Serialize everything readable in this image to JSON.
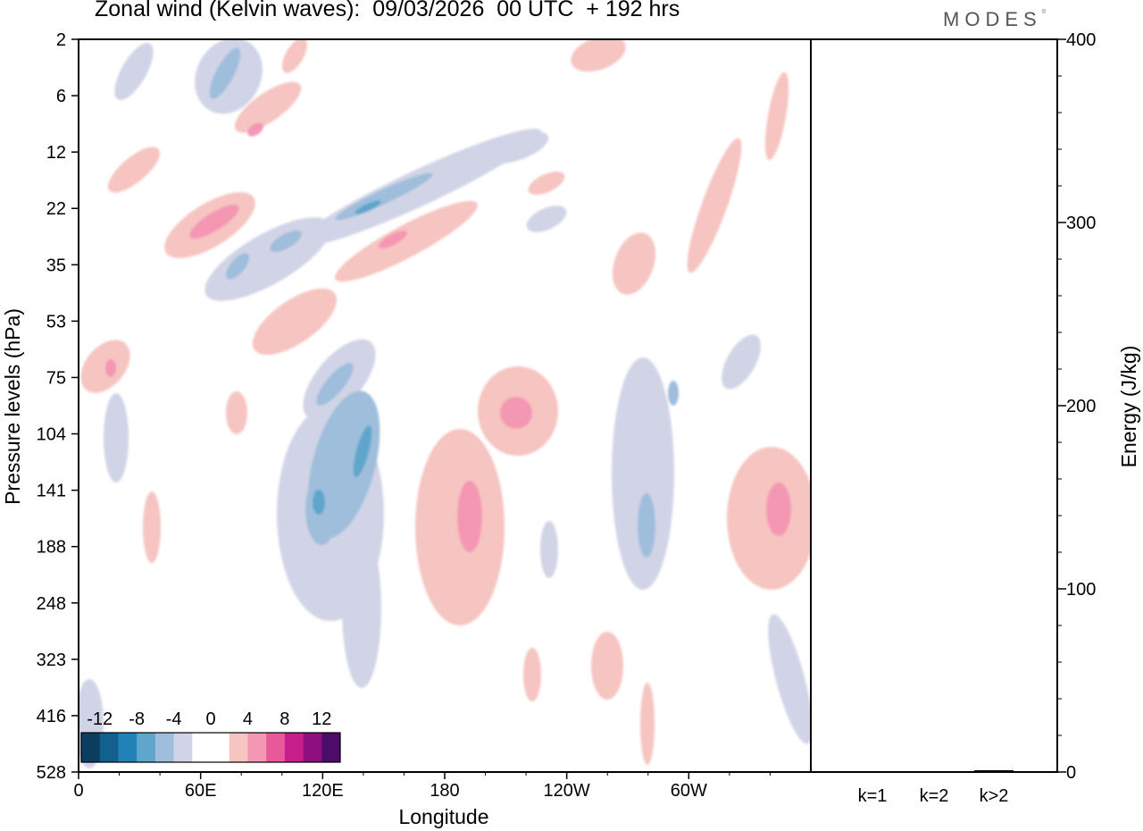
{
  "title": "Zonal wind (Kelvin waves):  09/03/2026  00 UTC  + 192 hrs",
  "logo": "MODES",
  "logo_mark": "©",
  "chart_data": [
    {
      "type": "heatmap",
      "title": "Zonal wind (Kelvin waves):  09/03/2026  00 UTC  + 192 hrs",
      "xlabel": "Longitude",
      "ylabel": "Pressure levels (hPa)",
      "x_ticks": [
        "0",
        "60E",
        "120E",
        "180",
        "120W",
        "60W"
      ],
      "x_tick_values": [
        0,
        60,
        120,
        180,
        240,
        300
      ],
      "xlim": [
        0,
        360
      ],
      "y_ticks": [
        "2",
        "6",
        "12",
        "22",
        "35",
        "53",
        "75",
        "104",
        "141",
        "188",
        "248",
        "323",
        "416",
        "528"
      ],
      "y_scale": "log",
      "colorbar": {
        "labels": [
          "-12",
          "-8",
          "-4",
          "0",
          "4",
          "8",
          "12"
        ],
        "colors": [
          "#0b3d5e",
          "#12608e",
          "#2383b8",
          "#5ea6cc",
          "#9fbedb",
          "#d1d4e6",
          "#ffffff",
          "#ffffff",
          "#f6c5c1",
          "#f497b3",
          "#e8599a",
          "#c61e8b",
          "#8e0f7d",
          "#4d0b6b"
        ],
        "placement": "bottom-left"
      },
      "legend": "bottom-left"
    },
    {
      "type": "bar",
      "categories": [
        "k=1",
        "k=2",
        "k>2"
      ],
      "values": [
        0,
        0,
        1
      ],
      "ylabel": "Energy (J/kg)",
      "y_ticks": [
        "0",
        "100",
        "200",
        "300",
        "400"
      ],
      "ylim": [
        0,
        400
      ],
      "yaxis_side": "right"
    }
  ]
}
